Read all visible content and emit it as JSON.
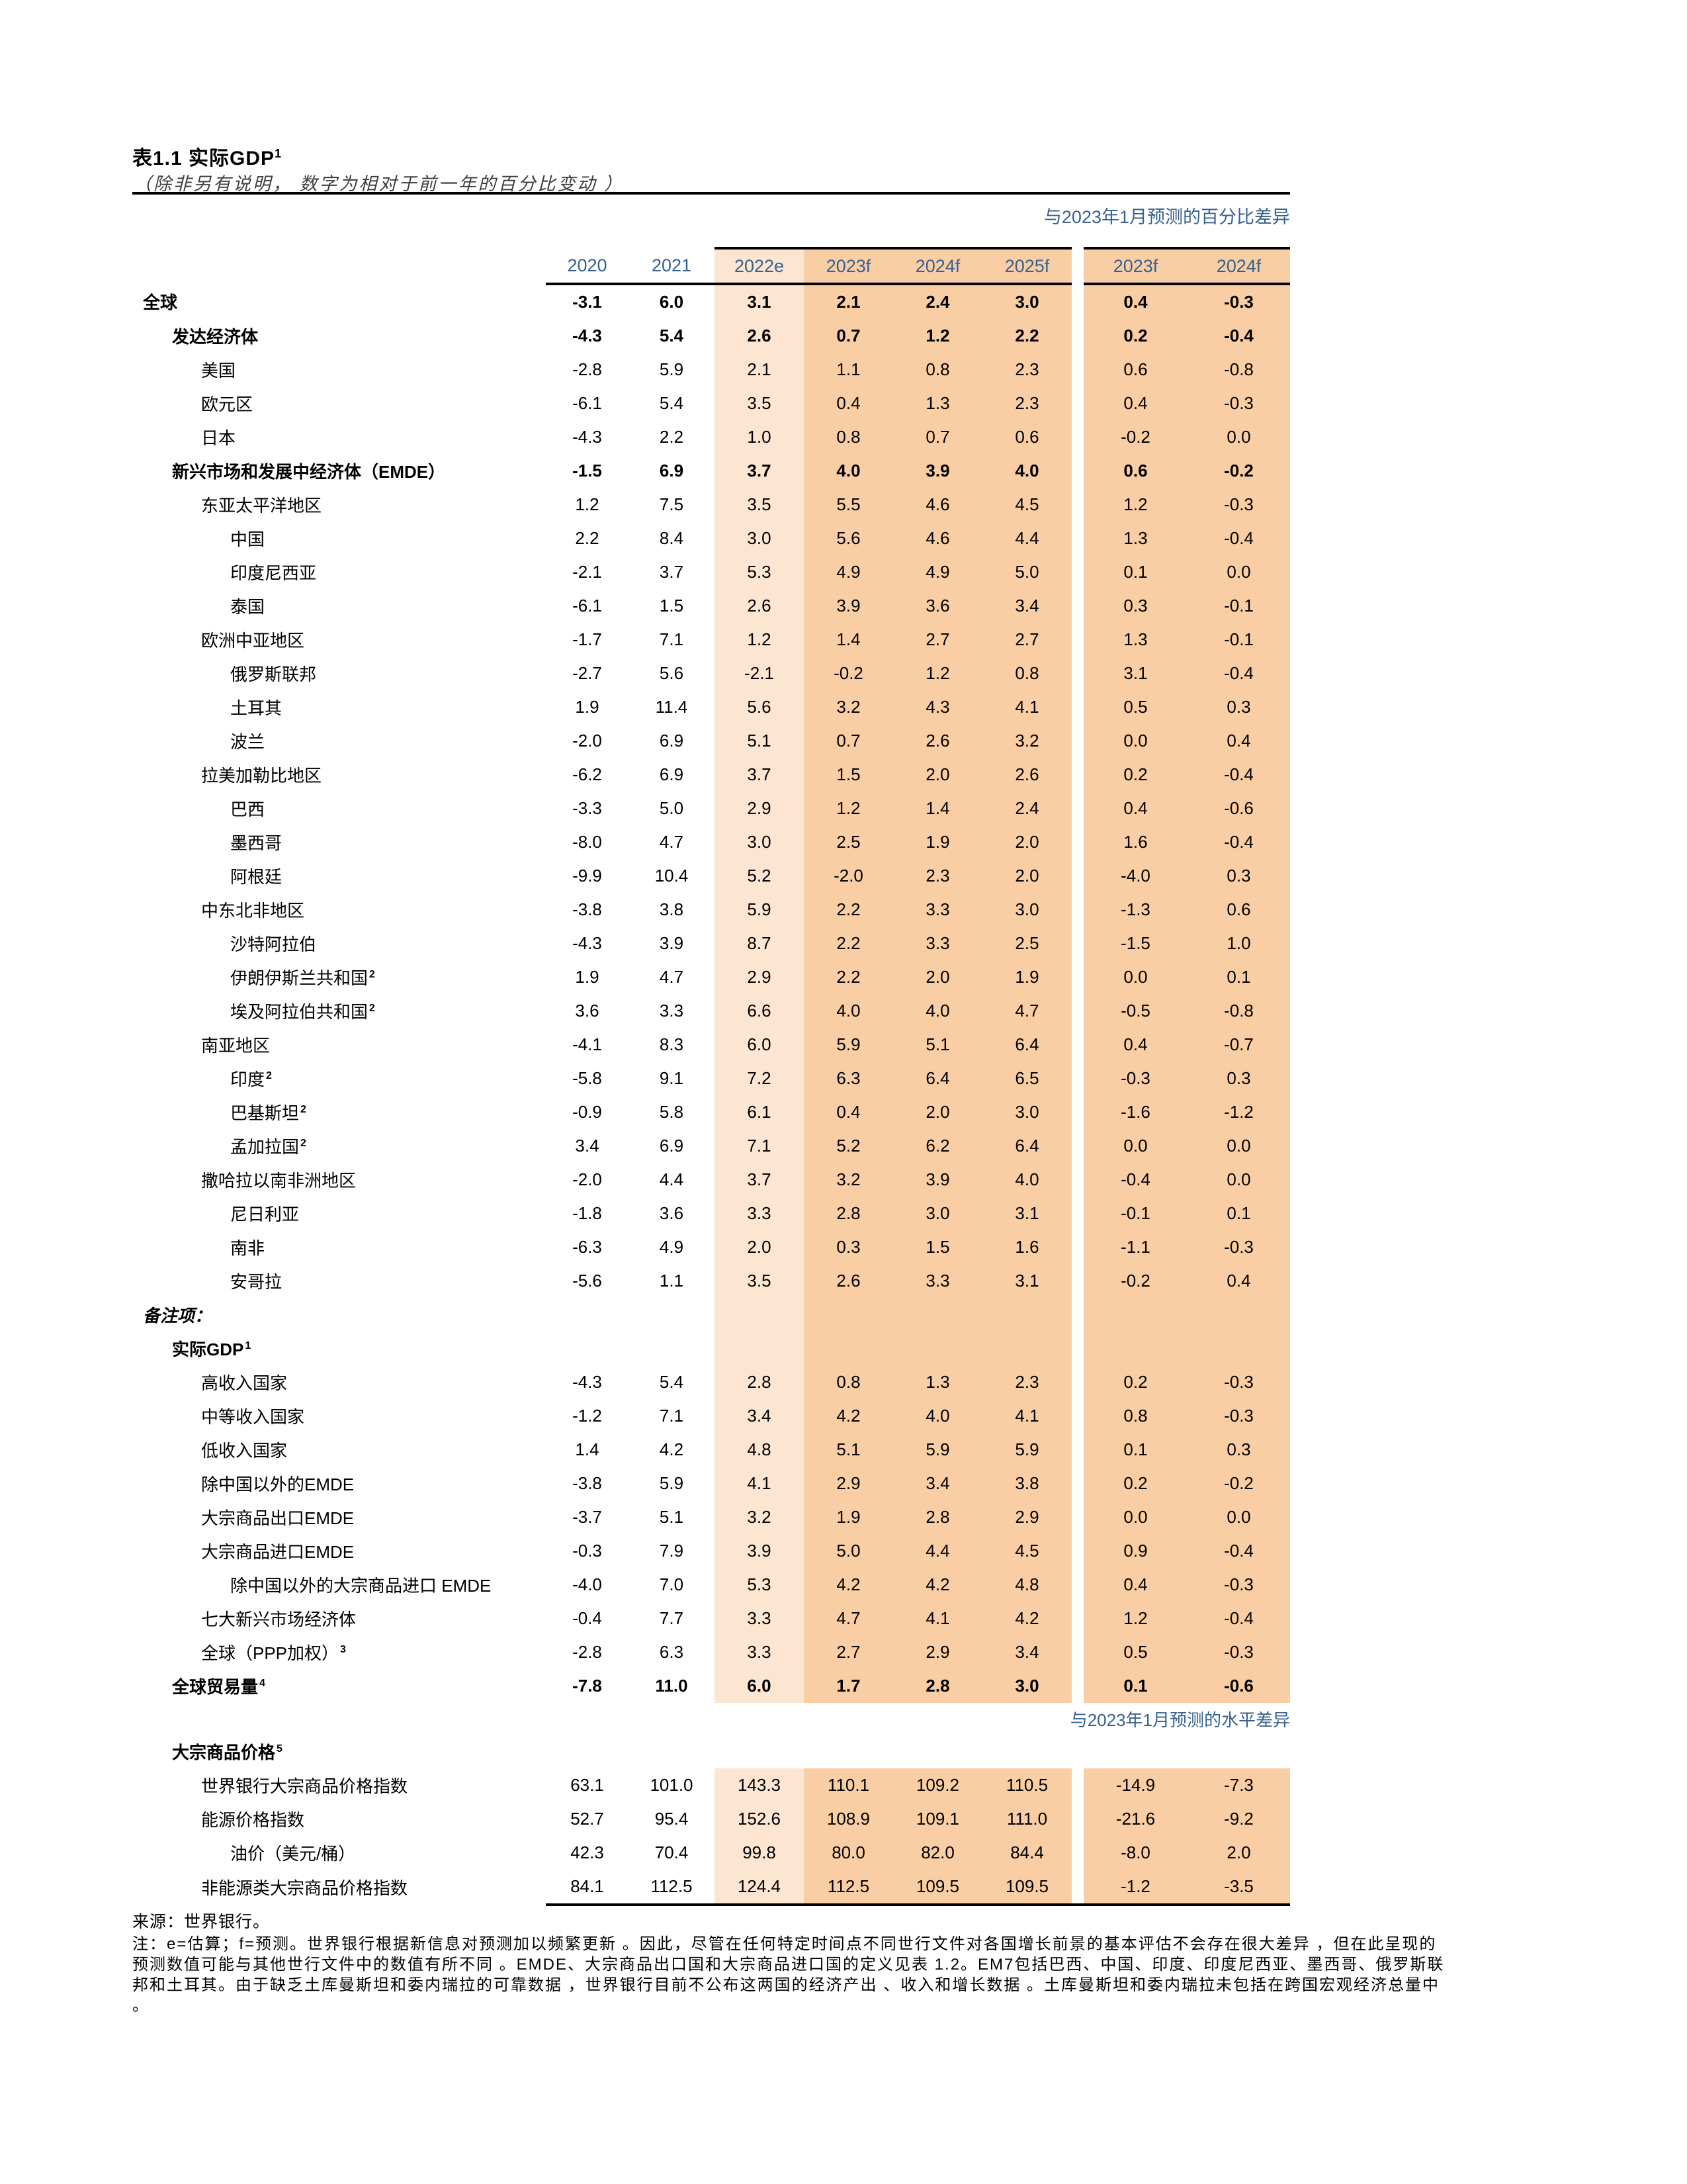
{
  "page": {
    "title": "表1.1 实际GDP",
    "title_sup": "1",
    "subtitle": "（除非另有说明， 数字为相对于前一年的百分比变动 ）",
    "diff_pct_header": "与2023年1月预测的百分比差异",
    "diff_level_header": "与2023年1月预测的水平差异",
    "source": "来源：世界银行。",
    "note_lines": [
      "注：e=估算；f=预测。世界银行根据新信息对预测加以频繁更新 。因此，尽管在任何特定时间点不同世行文件对各国增长前景的基本评估不会存在很大差异 ，但在此呈现的",
      "预测数值可能与其他世行文件中的数值有所不同 。EMDE、大宗商品出口国和大宗商品进口国的定义见表 1.2。EM7包括巴西、中国、印度、印度尼西亚、墨西哥、俄罗斯联",
      "邦和土耳其。由于缺乏土库曼斯坦和委内瑞拉的可靠数据 ，世界银行目前不公布这两国的经济产出 、收入和增长数据 。土库曼斯坦和委内瑞拉未包括在跨国宏观经济总量中",
      "。"
    ]
  },
  "columns": [
    "2020",
    "2021",
    "2022e",
    "2023f",
    "2024f",
    "2025f"
  ],
  "diff_columns": [
    "2023f",
    "2024f"
  ],
  "colors": {
    "band_light": "#FCE5D1",
    "band_dark": "#F9CEA4",
    "header_blue": "#36608F"
  },
  "rows": [
    {
      "label": "全球",
      "indent": 0,
      "bold": true,
      "band": true,
      "values": [
        "-3.1",
        "6.0",
        "3.1",
        "2.1",
        "2.4",
        "3.0",
        "0.4",
        "-0.3"
      ]
    },
    {
      "label": "发达经济体",
      "indent": 1,
      "bold": true,
      "band": true,
      "values": [
        "-4.3",
        "5.4",
        "2.6",
        "0.7",
        "1.2",
        "2.2",
        "0.2",
        "-0.4"
      ]
    },
    {
      "label": "美国",
      "indent": 2,
      "band": true,
      "values": [
        "-2.8",
        "5.9",
        "2.1",
        "1.1",
        "0.8",
        "2.3",
        "0.6",
        "-0.8"
      ]
    },
    {
      "label": "欧元区",
      "indent": 2,
      "band": true,
      "values": [
        "-6.1",
        "5.4",
        "3.5",
        "0.4",
        "1.3",
        "2.3",
        "0.4",
        "-0.3"
      ]
    },
    {
      "label": "日本",
      "indent": 2,
      "band": true,
      "values": [
        "-4.3",
        "2.2",
        "1.0",
        "0.8",
        "0.7",
        "0.6",
        "-0.2",
        "0.0"
      ]
    },
    {
      "label": "新兴市场和发展中经济体（EMDE）",
      "indent": 1,
      "bold": true,
      "band": true,
      "values": [
        "-1.5",
        "6.9",
        "3.7",
        "4.0",
        "3.9",
        "4.0",
        "0.6",
        "-0.2"
      ]
    },
    {
      "label": "东亚太平洋地区",
      "indent": 2,
      "band": true,
      "values": [
        "1.2",
        "7.5",
        "3.5",
        "5.5",
        "4.6",
        "4.5",
        "1.2",
        "-0.3"
      ]
    },
    {
      "label": "中国",
      "indent": 3,
      "band": true,
      "values": [
        "2.2",
        "8.4",
        "3.0",
        "5.6",
        "4.6",
        "4.4",
        "1.3",
        "-0.4"
      ]
    },
    {
      "label": "印度尼西亚",
      "indent": 3,
      "band": true,
      "values": [
        "-2.1",
        "3.7",
        "5.3",
        "4.9",
        "4.9",
        "5.0",
        "0.1",
        "0.0"
      ]
    },
    {
      "label": "泰国",
      "indent": 3,
      "band": true,
      "values": [
        "-6.1",
        "1.5",
        "2.6",
        "3.9",
        "3.6",
        "3.4",
        "0.3",
        "-0.1"
      ]
    },
    {
      "label": "欧洲中亚地区",
      "indent": 2,
      "band": true,
      "values": [
        "-1.7",
        "7.1",
        "1.2",
        "1.4",
        "2.7",
        "2.7",
        "1.3",
        "-0.1"
      ]
    },
    {
      "label": "俄罗斯联邦",
      "indent": 3,
      "band": true,
      "values": [
        "-2.7",
        "5.6",
        "-2.1",
        "-0.2",
        "1.2",
        "0.8",
        "3.1",
        "-0.4"
      ]
    },
    {
      "label": "土耳其",
      "indent": 3,
      "band": true,
      "values": [
        "1.9",
        "11.4",
        "5.6",
        "3.2",
        "4.3",
        "4.1",
        "0.5",
        "0.3"
      ]
    },
    {
      "label": "波兰",
      "indent": 3,
      "band": true,
      "values": [
        "-2.0",
        "6.9",
        "5.1",
        "0.7",
        "2.6",
        "3.2",
        "0.0",
        "0.4"
      ]
    },
    {
      "label": "拉美加勒比地区",
      "indent": 2,
      "band": true,
      "values": [
        "-6.2",
        "6.9",
        "3.7",
        "1.5",
        "2.0",
        "2.6",
        "0.2",
        "-0.4"
      ]
    },
    {
      "label": "巴西",
      "indent": 3,
      "band": true,
      "values": [
        "-3.3",
        "5.0",
        "2.9",
        "1.2",
        "1.4",
        "2.4",
        "0.4",
        "-0.6"
      ]
    },
    {
      "label": "墨西哥",
      "indent": 3,
      "band": true,
      "values": [
        "-8.0",
        "4.7",
        "3.0",
        "2.5",
        "1.9",
        "2.0",
        "1.6",
        "-0.4"
      ]
    },
    {
      "label": "阿根廷",
      "indent": 3,
      "band": true,
      "values": [
        "-9.9",
        "10.4",
        "5.2",
        "-2.0",
        "2.3",
        "2.0",
        "-4.0",
        "0.3"
      ]
    },
    {
      "label": "中东北非地区",
      "indent": 2,
      "band": true,
      "values": [
        "-3.8",
        "3.8",
        "5.9",
        "2.2",
        "3.3",
        "3.0",
        "-1.3",
        "0.6"
      ]
    },
    {
      "label": "沙特阿拉伯",
      "indent": 3,
      "band": true,
      "values": [
        "-4.3",
        "3.9",
        "8.7",
        "2.2",
        "3.3",
        "2.5",
        "-1.5",
        "1.0"
      ]
    },
    {
      "label": "伊朗伊斯兰共和国",
      "sup": "2",
      "indent": 3,
      "band": true,
      "values": [
        "1.9",
        "4.7",
        "2.9",
        "2.2",
        "2.0",
        "1.9",
        "0.0",
        "0.1"
      ]
    },
    {
      "label": "埃及阿拉伯共和国",
      "sup": "2",
      "indent": 3,
      "band": true,
      "values": [
        "3.6",
        "3.3",
        "6.6",
        "4.0",
        "4.0",
        "4.7",
        "-0.5",
        "-0.8"
      ]
    },
    {
      "label": "南亚地区",
      "indent": 2,
      "band": true,
      "values": [
        "-4.1",
        "8.3",
        "6.0",
        "5.9",
        "5.1",
        "6.4",
        "0.4",
        "-0.7"
      ]
    },
    {
      "label": "印度",
      "sup": "2",
      "indent": 3,
      "band": true,
      "values": [
        "-5.8",
        "9.1",
        "7.2",
        "6.3",
        "6.4",
        "6.5",
        "-0.3",
        "0.3"
      ]
    },
    {
      "label": "巴基斯坦",
      "sup": "2",
      "indent": 3,
      "band": true,
      "values": [
        "-0.9",
        "5.8",
        "6.1",
        "0.4",
        "2.0",
        "3.0",
        "-1.6",
        "-1.2"
      ]
    },
    {
      "label": "孟加拉国",
      "sup": "2",
      "indent": 3,
      "band": true,
      "values": [
        "3.4",
        "6.9",
        "7.1",
        "5.2",
        "6.2",
        "6.4",
        "0.0",
        "0.0"
      ]
    },
    {
      "label": "撒哈拉以南非洲地区",
      "indent": 2,
      "band": true,
      "values": [
        "-2.0",
        "4.4",
        "3.7",
        "3.2",
        "3.9",
        "4.0",
        "-0.4",
        "0.0"
      ]
    },
    {
      "label": "尼日利亚",
      "indent": 3,
      "band": true,
      "values": [
        "-1.8",
        "3.6",
        "3.3",
        "2.8",
        "3.0",
        "3.1",
        "-0.1",
        "0.1"
      ]
    },
    {
      "label": "南非",
      "indent": 3,
      "band": true,
      "values": [
        "-6.3",
        "4.9",
        "2.0",
        "0.3",
        "1.5",
        "1.6",
        "-1.1",
        "-0.3"
      ]
    },
    {
      "label": "安哥拉",
      "indent": 3,
      "band": true,
      "values": [
        "-5.6",
        "1.1",
        "3.5",
        "2.6",
        "3.3",
        "3.1",
        "-0.2",
        "0.4"
      ]
    },
    {
      "label": "备注项：",
      "indent": 0,
      "bold": true,
      "italic": true,
      "type": "section",
      "band": true
    },
    {
      "label": "实际GDP",
      "sup": "1",
      "indent": 1,
      "bold": true,
      "type": "section",
      "band": true
    },
    {
      "label": "高收入国家",
      "indent": 2,
      "band": true,
      "values": [
        "-4.3",
        "5.4",
        "2.8",
        "0.8",
        "1.3",
        "2.3",
        "0.2",
        "-0.3"
      ]
    },
    {
      "label": "中等收入国家",
      "indent": 2,
      "band": true,
      "values": [
        "-1.2",
        "7.1",
        "3.4",
        "4.2",
        "4.0",
        "4.1",
        "0.8",
        "-0.3"
      ]
    },
    {
      "label": "低收入国家",
      "indent": 2,
      "band": true,
      "values": [
        "1.4",
        "4.2",
        "4.8",
        "5.1",
        "5.9",
        "5.9",
        "0.1",
        "0.3"
      ]
    },
    {
      "label": "除中国以外的EMDE",
      "indent": 2,
      "band": true,
      "values": [
        "-3.8",
        "5.9",
        "4.1",
        "2.9",
        "3.4",
        "3.8",
        "0.2",
        "-0.2"
      ]
    },
    {
      "label": "大宗商品出口EMDE",
      "indent": 2,
      "band": true,
      "values": [
        "-3.7",
        "5.1",
        "3.2",
        "1.9",
        "2.8",
        "2.9",
        "0.0",
        "0.0"
      ]
    },
    {
      "label": "大宗商品进口EMDE",
      "indent": 2,
      "band": true,
      "values": [
        "-0.3",
        "7.9",
        "3.9",
        "5.0",
        "4.4",
        "4.5",
        "0.9",
        "-0.4"
      ]
    },
    {
      "label": "除中国以外的大宗商品进口 EMDE",
      "indent": 3,
      "band": true,
      "values": [
        "-4.0",
        "7.0",
        "5.3",
        "4.2",
        "4.2",
        "4.8",
        "0.4",
        "-0.3"
      ]
    },
    {
      "label": "七大新兴市场经济体",
      "indent": 2,
      "band": true,
      "values": [
        "-0.4",
        "7.7",
        "3.3",
        "4.7",
        "4.1",
        "4.2",
        "1.2",
        "-0.4"
      ]
    },
    {
      "label": "全球（PPP加权）",
      "sup": "3",
      "indent": 2,
      "band": true,
      "values": [
        "-2.8",
        "6.3",
        "3.3",
        "2.7",
        "2.9",
        "3.4",
        "0.5",
        "-0.3"
      ]
    },
    {
      "label": "全球贸易量",
      "sup": "4",
      "indent": 1,
      "bold": true,
      "band": true,
      "values": [
        "-7.8",
        "11.0",
        "6.0",
        "1.7",
        "2.8",
        "3.0",
        "0.1",
        "-0.6"
      ]
    },
    {
      "type": "side-note"
    },
    {
      "label": "大宗商品价格",
      "sup": "5",
      "indent": 1,
      "bold": true,
      "type": "section",
      "band": false
    },
    {
      "label": "世界银行大宗商品价格指数",
      "indent": 2,
      "band": true,
      "values": [
        "63.1",
        "101.0",
        "143.3",
        "110.1",
        "109.2",
        "110.5",
        "-14.9",
        "-7.3"
      ]
    },
    {
      "label": "能源价格指数",
      "indent": 2,
      "band": true,
      "values": [
        "52.7",
        "95.4",
        "152.6",
        "108.9",
        "109.1",
        "111.0",
        "-21.6",
        "-9.2"
      ]
    },
    {
      "label": "油价（美元/桶）",
      "indent": 3,
      "band": true,
      "values": [
        "42.3",
        "70.4",
        "99.8",
        "80.0",
        "82.0",
        "84.4",
        "-8.0",
        "2.0"
      ]
    },
    {
      "label": "非能源类大宗商品价格指数",
      "indent": 2,
      "band": true,
      "thick_bottom": true,
      "values": [
        "84.1",
        "112.5",
        "124.4",
        "112.5",
        "109.5",
        "109.5",
        "-1.2",
        "-3.5"
      ]
    }
  ]
}
